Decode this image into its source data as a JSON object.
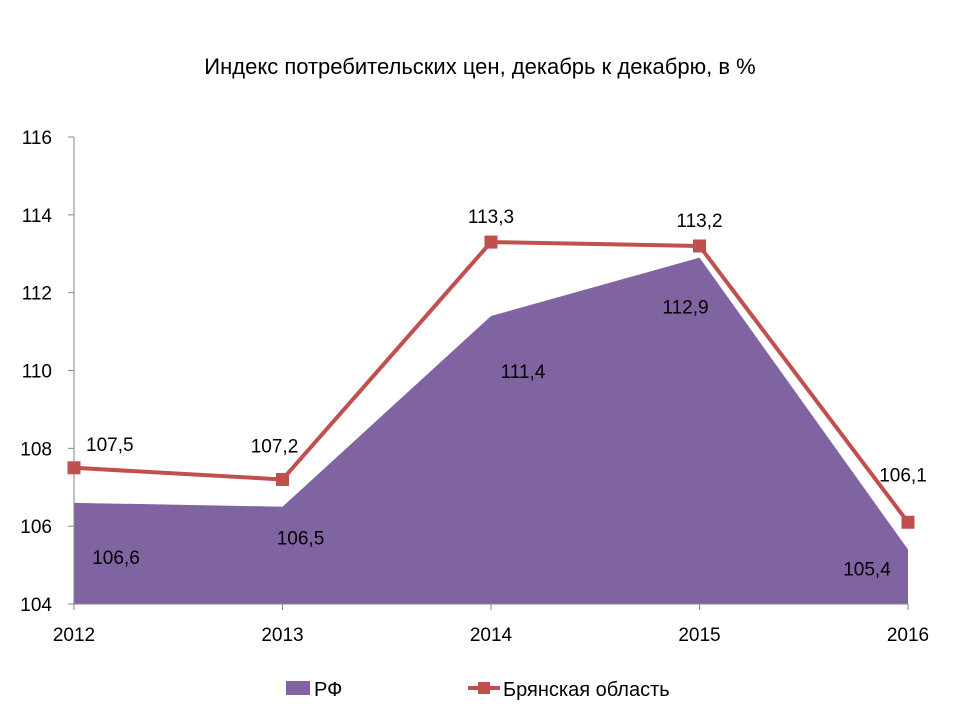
{
  "chart_data": {
    "type": "area",
    "title": "Индекс потребительских цен, декабрь к декабрю, в %",
    "xlabel": "",
    "ylabel": "",
    "categories": [
      "2012",
      "2013",
      "2014",
      "2015",
      "2016"
    ],
    "ylim": [
      104,
      116
    ],
    "yticks": [
      "104",
      "106",
      "108",
      "110",
      "112",
      "114",
      "116"
    ],
    "grid": false,
    "legend_position": "bottom",
    "series": [
      {
        "name": "РФ",
        "type": "area",
        "color": "#8064A2",
        "values": [
          106.6,
          106.5,
          111.4,
          112.9,
          105.4
        ],
        "labels": [
          "106,6",
          "106,5",
          "111,4",
          "112,9",
          "105,4"
        ]
      },
      {
        "name": "Брянская область",
        "type": "line",
        "color": "#C0504D",
        "marker": "square",
        "values": [
          107.5,
          107.2,
          113.3,
          113.2,
          106.1
        ],
        "labels": [
          "107,5",
          "107,2",
          "113,3",
          "113,2",
          "106,1"
        ]
      }
    ]
  }
}
